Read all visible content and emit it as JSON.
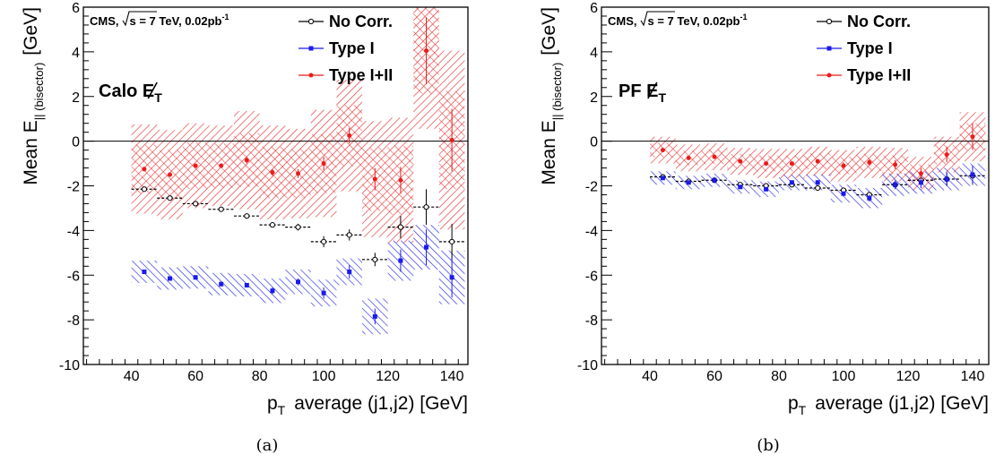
{
  "chart_data": [
    {
      "type": "scatter",
      "panel_label": "(a)",
      "title": "",
      "xlabel": "average (j1,j2) [GeV]",
      "xlabel_prefix": "p",
      "xlabel_sub": "T",
      "ylabel": "Mean E",
      "ylabel_sub": "|| (bisector)",
      "ylabel_unit": "[GeV]",
      "xlim": [
        25,
        145
      ],
      "ylim": [
        -10,
        6
      ],
      "xticks": [
        40,
        60,
        80,
        100,
        120,
        140
      ],
      "yticks": [
        -10,
        -8,
        -6,
        -4,
        -2,
        0,
        2,
        4,
        6
      ],
      "grid": false,
      "legend_position": "top-right",
      "annotation": "CMS,",
      "annotation_rest": "s = 7 TeV, 0.02pb",
      "annotation_sup": "-1",
      "met_label": "Calo E",
      "met_sub": "T",
      "colors": {
        "no_corr": "#000000",
        "type1": "#1a1aee",
        "type12": "#ee1a1a"
      },
      "series": [
        {
          "name": "No Corr.",
          "x": [
            44,
            52,
            60,
            68,
            76,
            84,
            92,
            100,
            108,
            116,
            124,
            132,
            140
          ],
          "y": [
            -2.15,
            -2.55,
            -2.8,
            -3.05,
            -3.35,
            -3.75,
            -3.85,
            -4.5,
            -4.2,
            -5.3,
            -3.85,
            -2.95,
            -4.5
          ],
          "yerr": [
            0.1,
            0.1,
            0.1,
            0.1,
            0.1,
            0.1,
            0.15,
            0.25,
            0.25,
            0.3,
            0.5,
            0.8,
            0.8
          ],
          "band_halfwidth": [
            0.35,
            0.35,
            0.35,
            0.35,
            0.35,
            0.35,
            0.35,
            0.35,
            0.35,
            0.35,
            0.35,
            0.35,
            0.35
          ]
        },
        {
          "name": "Type I",
          "x": [
            44,
            52,
            60,
            68,
            76,
            84,
            92,
            100,
            108,
            116,
            124,
            132,
            140
          ],
          "y": [
            -5.85,
            -6.15,
            -6.1,
            -6.4,
            -6.45,
            -6.7,
            -6.3,
            -6.8,
            -5.85,
            -7.85,
            -5.35,
            -4.75,
            -6.1
          ],
          "yerr": [
            0.1,
            0.1,
            0.1,
            0.1,
            0.1,
            0.15,
            0.15,
            0.25,
            0.3,
            0.35,
            0.5,
            0.8,
            0.9
          ],
          "band_halfwidth": [
            0.5,
            0.5,
            0.5,
            0.5,
            0.5,
            0.55,
            0.55,
            0.6,
            0.6,
            0.8,
            0.9,
            1.0,
            1.2
          ]
        },
        {
          "name": "Type I+II",
          "x": [
            44,
            52,
            60,
            68,
            76,
            84,
            92,
            100,
            108,
            116,
            124,
            132,
            140
          ],
          "y": [
            -1.25,
            -1.5,
            -1.1,
            -1.1,
            -0.85,
            -1.4,
            -1.45,
            -1.0,
            0.25,
            -1.7,
            -1.75,
            4.05,
            0.05
          ],
          "yerr": [
            0.1,
            0.1,
            0.1,
            0.1,
            0.15,
            0.15,
            0.2,
            0.3,
            0.35,
            0.5,
            0.6,
            1.5,
            1.4
          ],
          "band_halfwidth": [
            2.0,
            2.0,
            1.9,
            1.8,
            2.2,
            2.1,
            2.0,
            2.4,
            2.5,
            2.6,
            2.8,
            3.5,
            4.0
          ]
        }
      ]
    },
    {
      "type": "scatter",
      "panel_label": "(b)",
      "title": "",
      "xlabel": "average (j1,j2) [GeV]",
      "xlabel_prefix": "p",
      "xlabel_sub": "T",
      "ylabel": "Mean E",
      "ylabel_sub": "|| (bisector)",
      "ylabel_unit": "[GeV]",
      "xlim": [
        25,
        145
      ],
      "ylim": [
        -10,
        6
      ],
      "xticks": [
        40,
        60,
        80,
        100,
        120,
        140
      ],
      "yticks": [
        -10,
        -8,
        -6,
        -4,
        -2,
        0,
        2,
        4,
        6
      ],
      "grid": false,
      "legend_position": "top-right",
      "annotation": "CMS,",
      "annotation_rest": "s = 7 TeV, 0.02pb",
      "annotation_sup": "-1",
      "met_label": "PF E",
      "met_sub": "T",
      "colors": {
        "no_corr": "#000000",
        "type1": "#1a1aee",
        "type12": "#ee1a1a"
      },
      "series": [
        {
          "name": "No Corr.",
          "x": [
            44,
            52,
            60,
            68,
            76,
            84,
            92,
            100,
            108,
            116,
            124,
            132,
            140
          ],
          "y": [
            -1.6,
            -1.8,
            -1.75,
            -1.95,
            -2.0,
            -1.95,
            -2.1,
            -2.2,
            -2.4,
            -1.95,
            -1.75,
            -1.7,
            -1.55
          ],
          "yerr": [
            0.05,
            0.05,
            0.05,
            0.05,
            0.05,
            0.05,
            0.1,
            0.1,
            0.1,
            0.15,
            0.2,
            0.3,
            0.4
          ],
          "band_halfwidth": [
            0.2,
            0.2,
            0.2,
            0.2,
            0.2,
            0.2,
            0.2,
            0.2,
            0.2,
            0.2,
            0.2,
            0.2,
            0.2
          ]
        },
        {
          "name": "Type I",
          "x": [
            44,
            52,
            60,
            68,
            76,
            84,
            92,
            100,
            108,
            116,
            124,
            132,
            140
          ],
          "y": [
            -1.65,
            -1.85,
            -1.75,
            -2.05,
            -2.15,
            -1.85,
            -1.85,
            -2.35,
            -2.55,
            -1.95,
            -1.85,
            -1.7,
            -1.5
          ],
          "yerr": [
            0.05,
            0.05,
            0.05,
            0.05,
            0.05,
            0.05,
            0.1,
            0.1,
            0.15,
            0.2,
            0.25,
            0.3,
            0.4
          ],
          "band_halfwidth": [
            0.3,
            0.3,
            0.3,
            0.3,
            0.35,
            0.35,
            0.35,
            0.4,
            0.45,
            0.5,
            0.5,
            0.5,
            0.5
          ]
        },
        {
          "name": "Type I+II",
          "x": [
            44,
            52,
            60,
            68,
            76,
            84,
            92,
            100,
            108,
            116,
            124,
            132,
            140
          ],
          "y": [
            -0.4,
            -0.75,
            -0.7,
            -0.9,
            -1.0,
            -1.0,
            -0.9,
            -1.1,
            -0.95,
            -1.05,
            -1.45,
            -0.6,
            0.2
          ],
          "yerr": [
            0.05,
            0.05,
            0.05,
            0.05,
            0.05,
            0.05,
            0.1,
            0.15,
            0.15,
            0.2,
            0.25,
            0.35,
            0.6
          ],
          "band_halfwidth": [
            0.6,
            0.6,
            0.6,
            0.6,
            0.65,
            0.65,
            0.65,
            0.7,
            0.7,
            0.75,
            0.75,
            0.8,
            1.1
          ]
        }
      ]
    }
  ]
}
